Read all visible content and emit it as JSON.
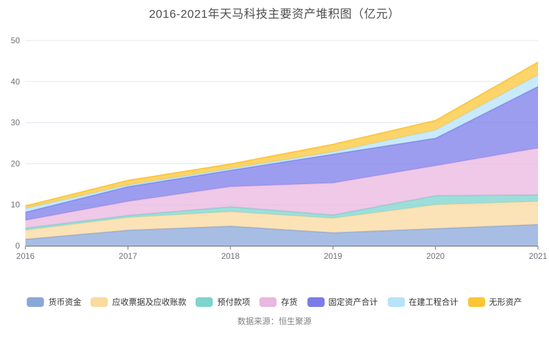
{
  "chart_data": {
    "type": "area",
    "stacked": true,
    "title": "2016-2021年天马科技主要资产堆积图（亿元）",
    "x_labels": [
      "2016",
      "2017",
      "2018",
      "2019",
      "2020",
      "2021"
    ],
    "y_ticks": [
      0,
      10,
      20,
      30,
      40,
      50
    ],
    "ylim": [
      0,
      50
    ],
    "grid": true,
    "legend_position": "bottom",
    "area_opacity": 0.75,
    "series": [
      {
        "name": "货币资金",
        "color": "#8AA7D9",
        "values": [
          1.6,
          3.8,
          4.8,
          3.2,
          4.2,
          5.2
        ]
      },
      {
        "name": "应收票据及应收账款",
        "color": "#FBDA9F",
        "values": [
          2.2,
          3.1,
          3.5,
          3.5,
          5.8,
          5.6
        ]
      },
      {
        "name": "预付款项",
        "color": "#7ED3CD",
        "values": [
          0.5,
          0.5,
          1.2,
          0.8,
          2.2,
          1.6
        ]
      },
      {
        "name": "存货",
        "color": "#E9B7DF",
        "values": [
          1.9,
          3.4,
          4.9,
          7.8,
          7.3,
          11.4
        ]
      },
      {
        "name": "固定资产合计",
        "color": "#7B7CE9",
        "values": [
          2.0,
          3.6,
          4.0,
          7.0,
          6.7,
          15.0
        ]
      },
      {
        "name": "在建工程合计",
        "color": "#B7E3FA",
        "values": [
          0.9,
          0.4,
          0.4,
          0.6,
          2.0,
          2.8
        ]
      },
      {
        "name": "无形资产",
        "color": "#FCC537",
        "values": [
          0.6,
          1.1,
          1.1,
          1.8,
          2.3,
          3.1
        ]
      }
    ]
  },
  "colors": {
    "axis_label": "#6E7079",
    "axis_line": "#6E7079",
    "grid_line": "#E0E6F1",
    "title_text": "#4F4F4F",
    "legend_text": "#333333",
    "source_text": "#828282"
  },
  "source_note": "数据来源：恒生聚源"
}
